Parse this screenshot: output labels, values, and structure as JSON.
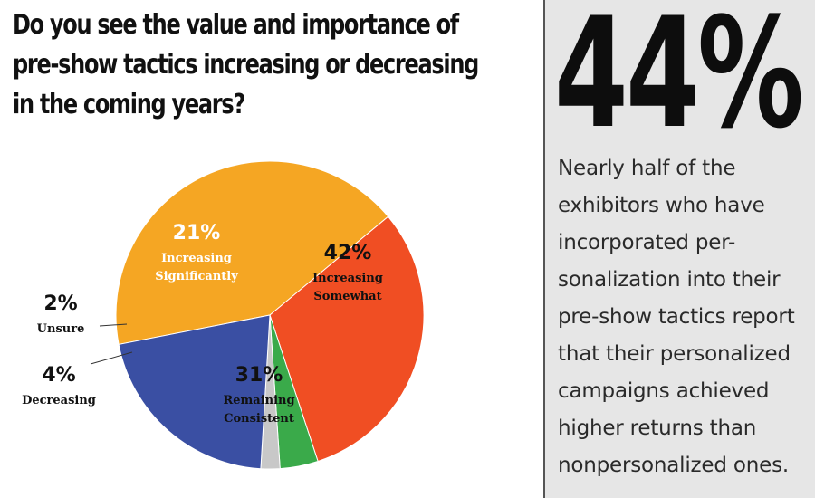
{
  "title_lines": [
    "Do you see the value and importance of",
    "pre-show tactics increasing or decreasing",
    "in the coming years?"
  ],
  "chart_data": {
    "type": "pie",
    "slices": [
      {
        "pct": "42%",
        "label_lines": [
          "Increasing",
          "Somewhat"
        ],
        "value": 42,
        "color": "#f5a623"
      },
      {
        "pct": "31%",
        "label_lines": [
          "Remaining",
          "Consistent"
        ],
        "value": 31,
        "color": "#f04e23"
      },
      {
        "pct": "4%",
        "label_lines": [
          "Decreasing"
        ],
        "value": 4,
        "color": "#3aaa4a"
      },
      {
        "pct": "2%",
        "label_lines": [
          "Unsure"
        ],
        "value": 2,
        "color": "#c8c8c8"
      },
      {
        "pct": "21%",
        "label_lines": [
          "Increasing",
          "Significantly"
        ],
        "value": 21,
        "color": "#3a4fa3"
      }
    ]
  },
  "stat": {
    "value": "44%",
    "lines": [
      "Nearly half of the",
      "exhibitors who have",
      "incorporated per-",
      "sonalization into their",
      "pre-show tactics report",
      "that their personalized",
      "campaigns achieved",
      "higher returns than",
      "nonpersonalized ones."
    ]
  }
}
